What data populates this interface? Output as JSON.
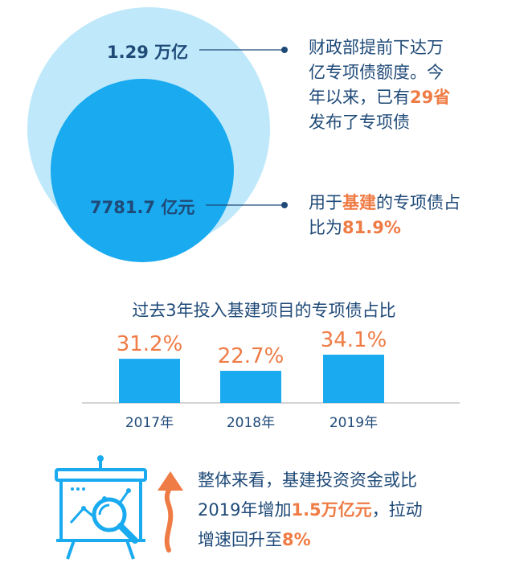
{
  "colors": {
    "outer_circle": "#bfe9fb",
    "inner_circle": "#19aaf0",
    "bar": "#19aaf0",
    "accent": "#ef7b45",
    "text": "#1f4a78",
    "axis": "#a9a9a9"
  },
  "top": {
    "outer_value": "1.29 万亿",
    "inner_value": "7781.7 亿元",
    "note1": {
      "l1": "财政部提前下达万",
      "l2": "亿专项债额度。今",
      "l3a": "年以来，已有",
      "l3b": "29省",
      "l4": "发布了专项债"
    },
    "note2": {
      "l1a": "用于",
      "l1b": "基建",
      "l1c": "的专项债占",
      "l2a": "比为",
      "l2b": "81.9%"
    }
  },
  "chart_data": {
    "type": "bar",
    "title": "过去3年投入基建项目的专项债占比",
    "categories": [
      "2017年",
      "2018年",
      "2019年"
    ],
    "values": [
      31.2,
      22.7,
      34.1
    ],
    "data_labels": [
      "31.2%",
      "22.7%",
      "34.1%"
    ],
    "unit": "%",
    "ylim": [
      0,
      34.1
    ],
    "grid": false,
    "legend": "none"
  },
  "bottom": {
    "icon": "presentation-board-magnifier-icon",
    "arrow_icon": "up-arrow-icon",
    "l1": "整体来看，基建投资资金或比",
    "l2a": "2019年增加",
    "l2b": "1.5万亿元",
    "l2c": "，拉动",
    "l3a": "增速回升至",
    "l3b": "8%"
  }
}
